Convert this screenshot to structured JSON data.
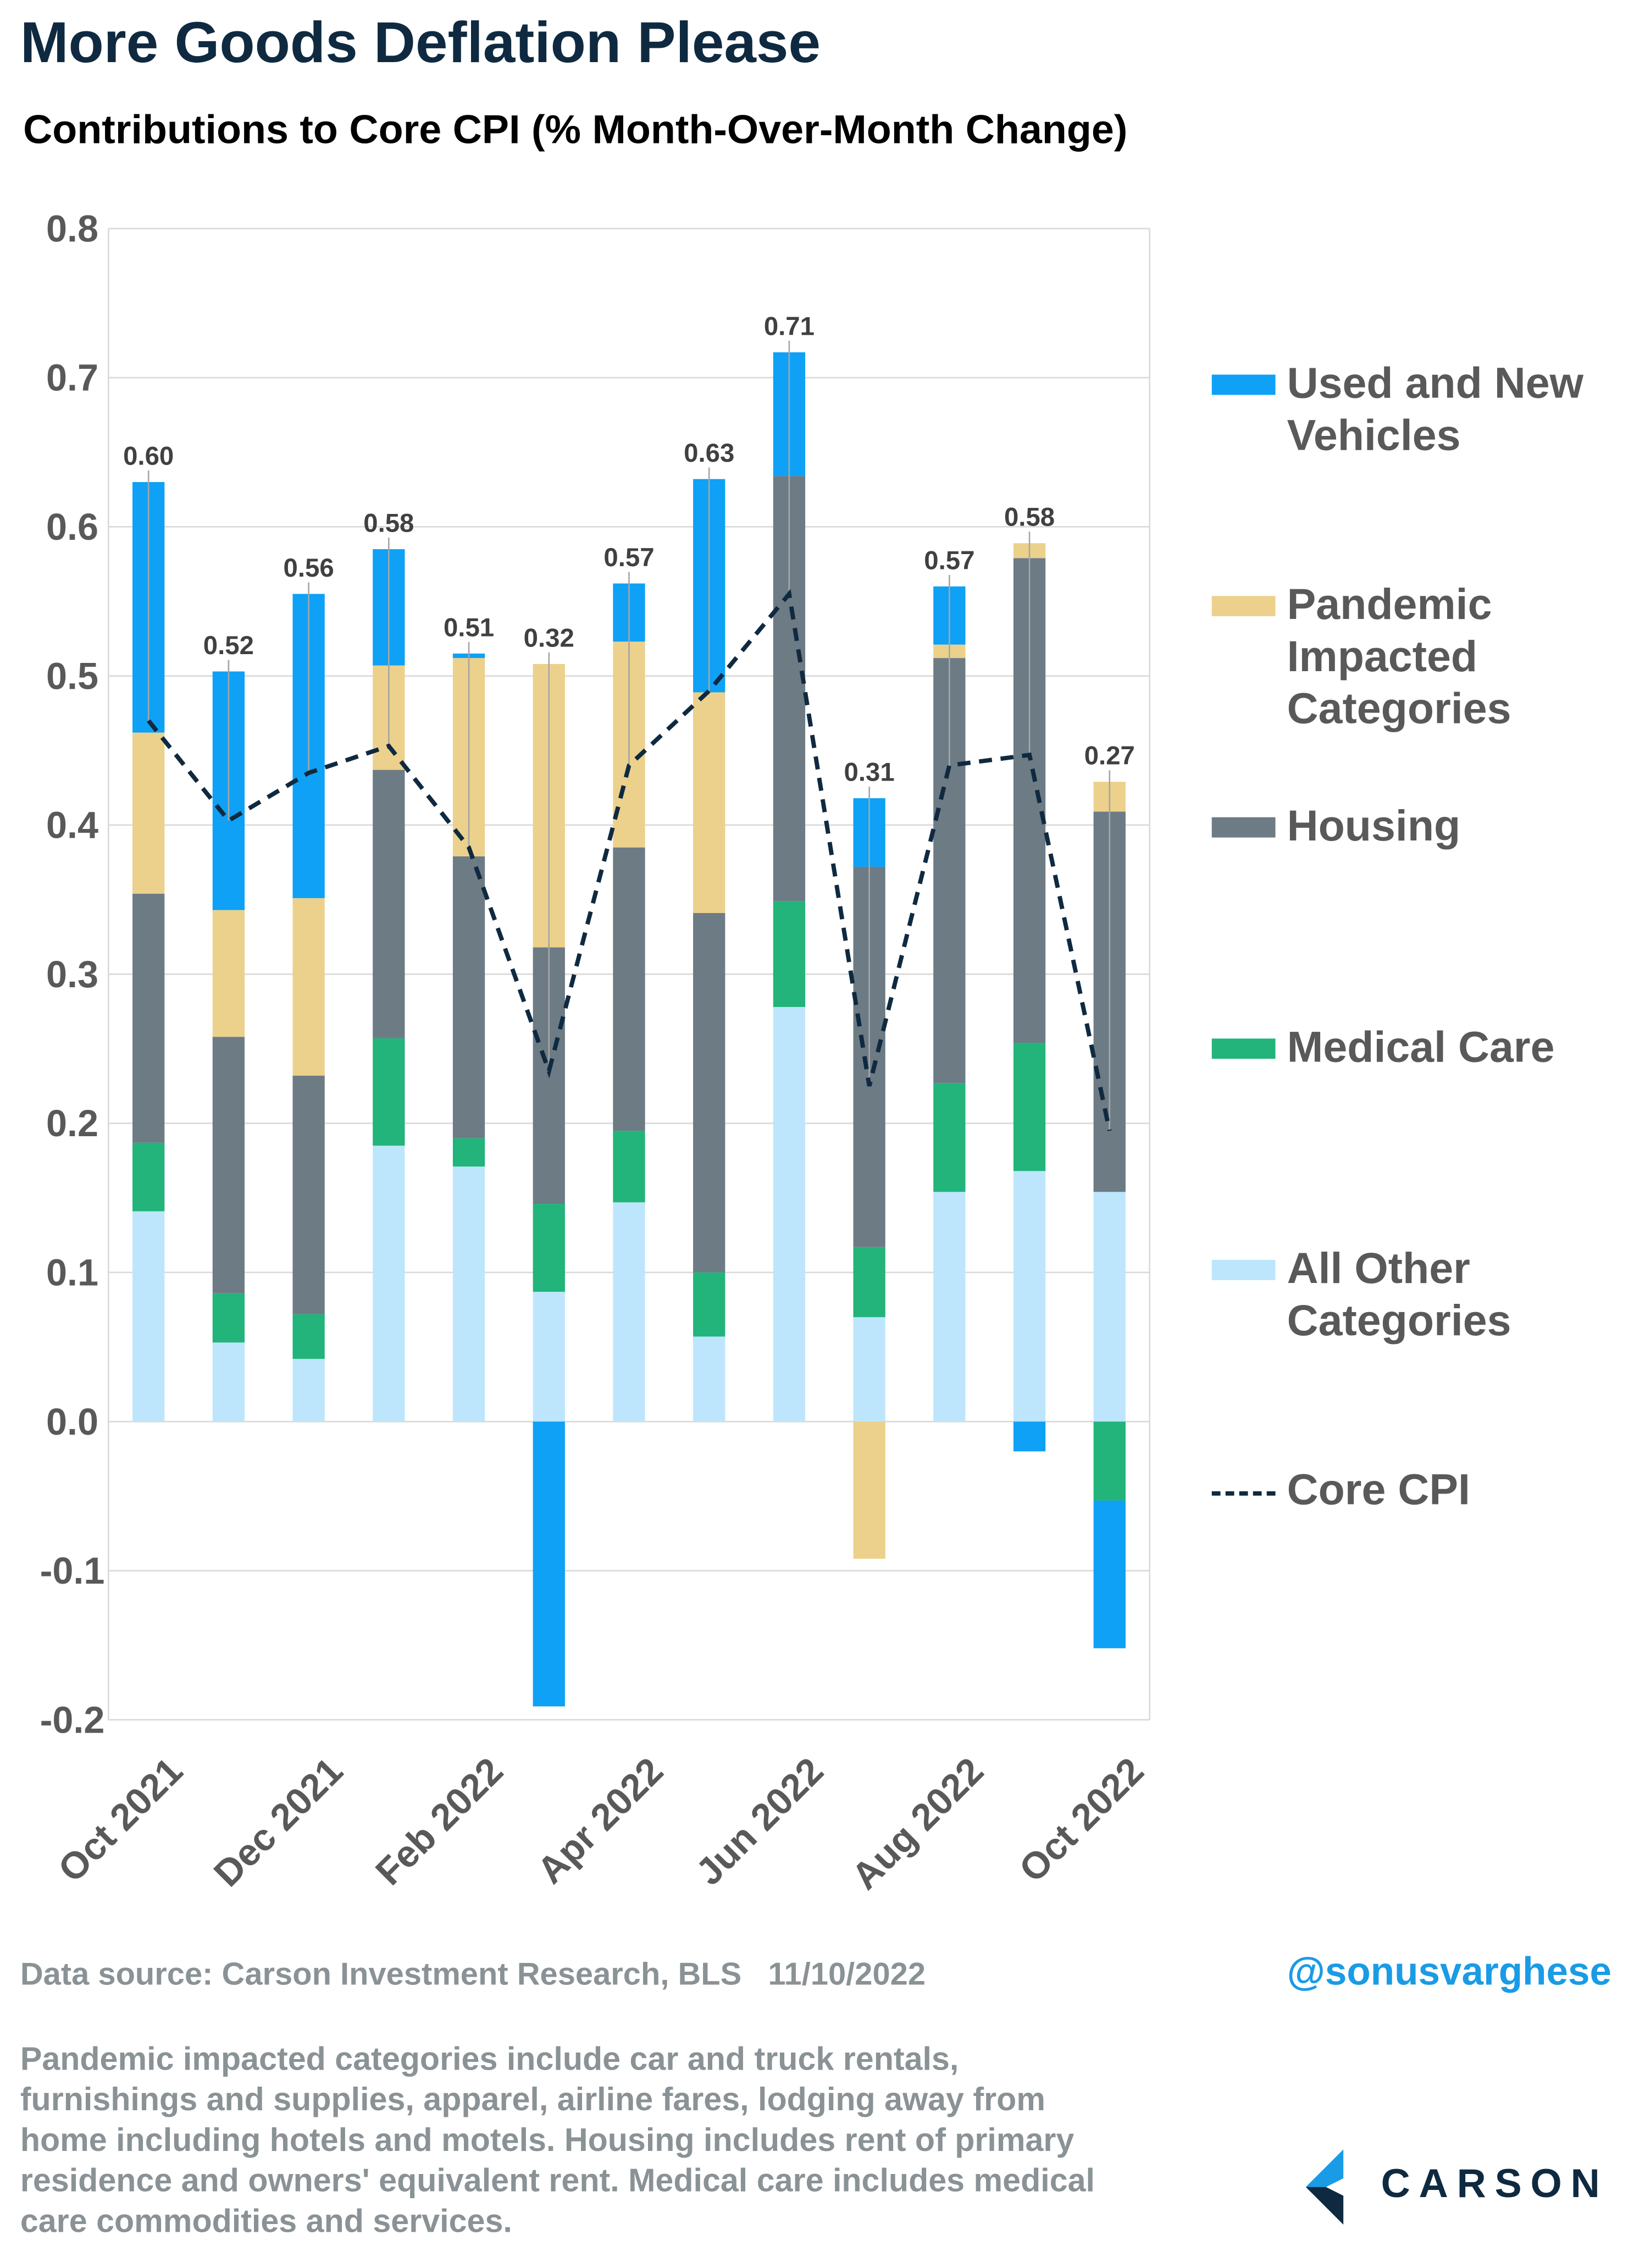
{
  "chart_data": {
    "type": "stacked_bar",
    "title": "More Goods Deflation Please",
    "subtitle": "Contributions to Core CPI (% Month-Over-Month Change)",
    "categories": [
      "Oct 2021",
      null,
      "Dec 2021",
      null,
      "Feb 2022",
      null,
      "Apr 2022",
      null,
      "Jun 2022",
      null,
      "Aug 2022",
      null,
      "Oct 2022"
    ],
    "ylim": [
      -0.2,
      0.8
    ],
    "yticks": [
      -0.2,
      -0.1,
      {
        "value": 0,
        "label": "0.0"
      },
      0.1,
      0.2,
      0.3,
      0.4,
      0.5,
      0.6,
      0.7,
      0.8
    ],
    "grid": true,
    "legend": "right",
    "series": [
      {
        "name": "All Other Categories",
        "color": "#bde6fd",
        "values": [
          0.141,
          0.053,
          0.042,
          0.185,
          0.171,
          0.087,
          0.147,
          0.057,
          0.278,
          0.07,
          0.154,
          0.168,
          0.154
        ]
      },
      {
        "name": "Medical Care",
        "color": "#22b47a",
        "values": [
          0.046,
          0.033,
          0.03,
          0.072,
          0.019,
          0.059,
          0.048,
          0.043,
          0.071,
          0.047,
          0.073,
          0.086,
          -0.053
        ]
      },
      {
        "name": "Housing",
        "color": "#6d7b85",
        "values": [
          0.167,
          0.172,
          0.16,
          0.18,
          0.189,
          0.172,
          0.19,
          0.241,
          0.285,
          0.255,
          0.285,
          0.325,
          0.255
        ]
      },
      {
        "name": "Pandemic Impacted Categories",
        "color": "#ecd18c",
        "values": [
          0.108,
          0.085,
          0.119,
          0.07,
          0.133,
          0.19,
          0.138,
          0.148,
          0,
          -0.092,
          0.009,
          0.01,
          0.02
        ]
      },
      {
        "name": "Used and New Vehicles",
        "color": "#0ea1f6",
        "values": [
          0.168,
          0.16,
          0.204,
          0.078,
          0.003,
          -0.191,
          0.039,
          0.143,
          0.083,
          0.046,
          0.039,
          -0.02,
          -0.099
        ]
      }
    ],
    "line": {
      "name": "Core CPI",
      "color": "#0f2a40",
      "dashed": true,
      "values": [
        0.47,
        0.403,
        0.435,
        0.453,
        0.385,
        0.235,
        0.44,
        0.49,
        0.555,
        0.225,
        0.44,
        0.447,
        0.195
      ]
    },
    "data_labels": {
      "values": [
        0.6,
        0.52,
        0.56,
        0.58,
        0.51,
        0.32,
        0.57,
        0.63,
        0.71,
        0.31,
        0.57,
        0.58,
        0.27
      ],
      "value_labels": [
        "0.60",
        "0.52",
        "0.56",
        "0.58",
        "0.51",
        "0.32",
        "0.57",
        "0.63",
        "0.71",
        "0.31",
        "0.57",
        "0.58",
        "0.27"
      ]
    },
    "source": "Data source: Carson Investment Research, BLS   11/10/2022",
    "handle": "@sonusvarghese",
    "note": "Pandemic impacted categories include car and truck rentals, furnishings and supplies, apparel, airline fares, lodging away from home including hotels and motels. Housing includes rent of primary residence and owners' equivalent rent. Medical care includes medical care commodities and services.",
    "logo": "CARSON"
  }
}
